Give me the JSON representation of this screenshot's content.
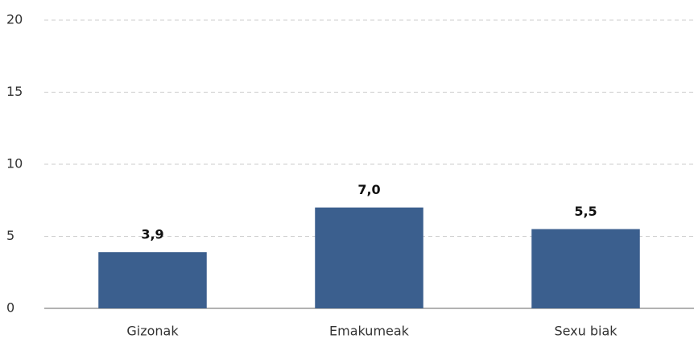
{
  "chart_data": {
    "type": "bar",
    "categories": [
      "Gizonak",
      "Emakumeak",
      "Sexu biak"
    ],
    "values": [
      3.9,
      7.0,
      5.5
    ],
    "value_labels": [
      "3,9",
      "7,0",
      "5,5"
    ],
    "color": "#3b5f8e",
    "ylim": [
      0,
      20
    ],
    "yticks": [
      0,
      5,
      10,
      15,
      20
    ],
    "grid": true
  }
}
